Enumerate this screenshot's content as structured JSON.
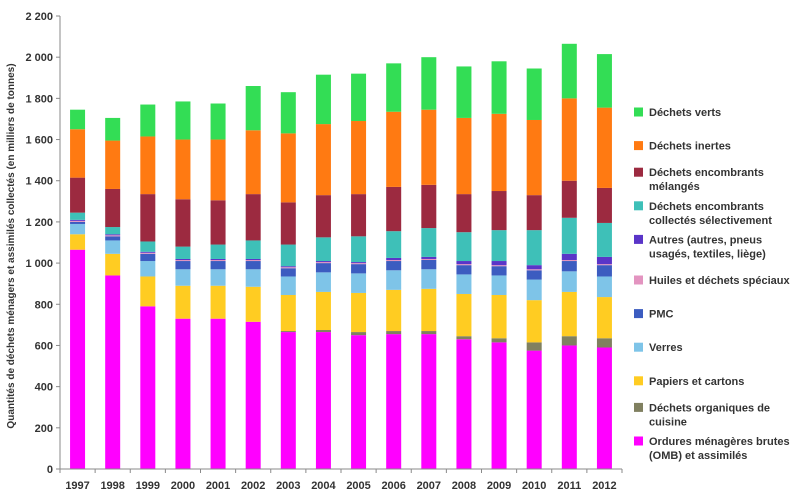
{
  "chart_data": {
    "type": "bar",
    "stacked": true,
    "ylabel": "Quantités de déchets ménagers et assimilés collectés (en milliers de tonnes)",
    "ylim": [
      0,
      2200
    ],
    "yticks": [
      "0",
      "200",
      "400",
      "600",
      "800",
      "1 000",
      "1 200",
      "1 400",
      "1 600",
      "1 800",
      "2 000",
      "2 200"
    ],
    "grid": false,
    "legend_position": "right",
    "categories": [
      "1997",
      "1998",
      "1999",
      "2000",
      "2001",
      "2002",
      "2003",
      "2004",
      "2005",
      "2006",
      "2007",
      "2008",
      "2009",
      "2010",
      "2011",
      "2012"
    ],
    "series": [
      {
        "name": "Ordures ménagères brutes (OMB) et assimilés",
        "color": "#ff00ff",
        "values": [
          1065,
          940,
          790,
          730,
          730,
          715,
          665,
          665,
          650,
          655,
          655,
          630,
          615,
          575,
          600,
          590
        ]
      },
      {
        "name": "Déchets organiques de cuisine",
        "color": "#808060",
        "values": [
          0,
          0,
          0,
          0,
          0,
          0,
          5,
          10,
          15,
          15,
          15,
          15,
          20,
          40,
          45,
          45
        ]
      },
      {
        "name": "Papiers et cartons",
        "color": "#ffcc22",
        "values": [
          75,
          105,
          145,
          160,
          160,
          170,
          175,
          185,
          190,
          200,
          205,
          205,
          210,
          205,
          215,
          200
        ]
      },
      {
        "name": "Verres",
        "color": "#7ec4e8",
        "values": [
          50,
          65,
          75,
          80,
          80,
          85,
          90,
          95,
          95,
          95,
          95,
          95,
          95,
          100,
          100,
          100
        ]
      },
      {
        "name": "PMC",
        "color": "#3c5cc0",
        "values": [
          10,
          20,
          35,
          40,
          40,
          40,
          40,
          45,
          45,
          45,
          45,
          45,
          45,
          45,
          50,
          55
        ]
      },
      {
        "name": "Huiles et déchets spéciaux",
        "color": "#e394c0",
        "values": [
          5,
          5,
          5,
          5,
          5,
          5,
          5,
          5,
          5,
          5,
          5,
          5,
          5,
          5,
          5,
          5
        ]
      },
      {
        "name": "Autres (autres, pneus usagés, textiles, liège)",
        "color": "#5a35c8",
        "values": [
          5,
          5,
          5,
          5,
          5,
          5,
          5,
          5,
          5,
          10,
          10,
          15,
          20,
          20,
          30,
          35
        ]
      },
      {
        "name": "Déchets encombrants collectés sélectivement",
        "color": "#3ec0b8",
        "values": [
          35,
          35,
          50,
          60,
          70,
          90,
          105,
          115,
          125,
          130,
          140,
          140,
          150,
          170,
          175,
          165
        ]
      },
      {
        "name": "Déchets encombrants mélangés",
        "color": "#9c2a40",
        "values": [
          170,
          185,
          230,
          230,
          215,
          225,
          205,
          205,
          205,
          215,
          210,
          185,
          190,
          170,
          180,
          170
        ]
      },
      {
        "name": "Déchets inertes",
        "color": "#ff7a12",
        "values": [
          235,
          235,
          280,
          290,
          295,
          310,
          335,
          345,
          355,
          365,
          365,
          370,
          375,
          365,
          400,
          390
        ]
      },
      {
        "name": "Déchets verts",
        "color": "#33dd55",
        "values": [
          95,
          110,
          155,
          185,
          175,
          215,
          200,
          240,
          230,
          235,
          255,
          250,
          255,
          250,
          265,
          260
        ]
      }
    ],
    "legend_order": [
      10,
      9,
      8,
      7,
      6,
      5,
      4,
      3,
      2,
      1,
      0
    ]
  }
}
